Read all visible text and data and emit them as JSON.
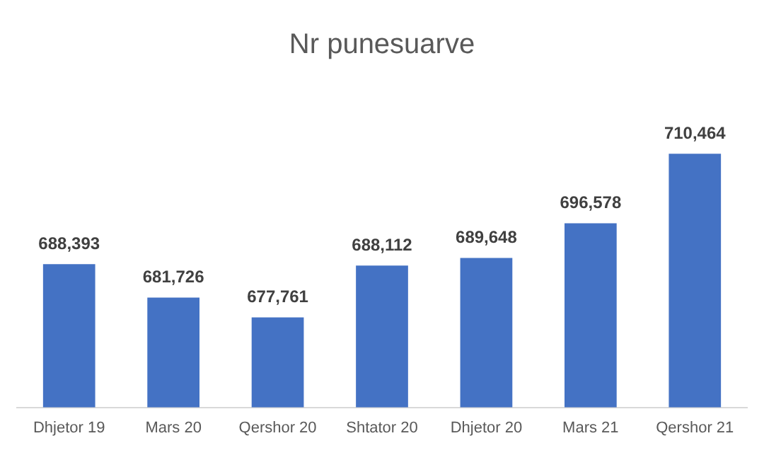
{
  "chart_data": {
    "type": "bar",
    "title": "Nr punesuarve",
    "categories": [
      "Dhjetor 19",
      "Mars 20",
      "Qershor 20",
      "Shtator 20",
      "Dhjetor 20",
      "Mars 21",
      "Qershor 21"
    ],
    "values": [
      688393,
      681726,
      677761,
      688112,
      689648,
      696578,
      710464
    ],
    "value_labels": [
      "688,393",
      "681,726",
      "677,761",
      "688,112",
      "689,648",
      "696,578",
      "710,464"
    ],
    "color": "#4472c4",
    "tick_labels": "x",
    "grid": false
  }
}
